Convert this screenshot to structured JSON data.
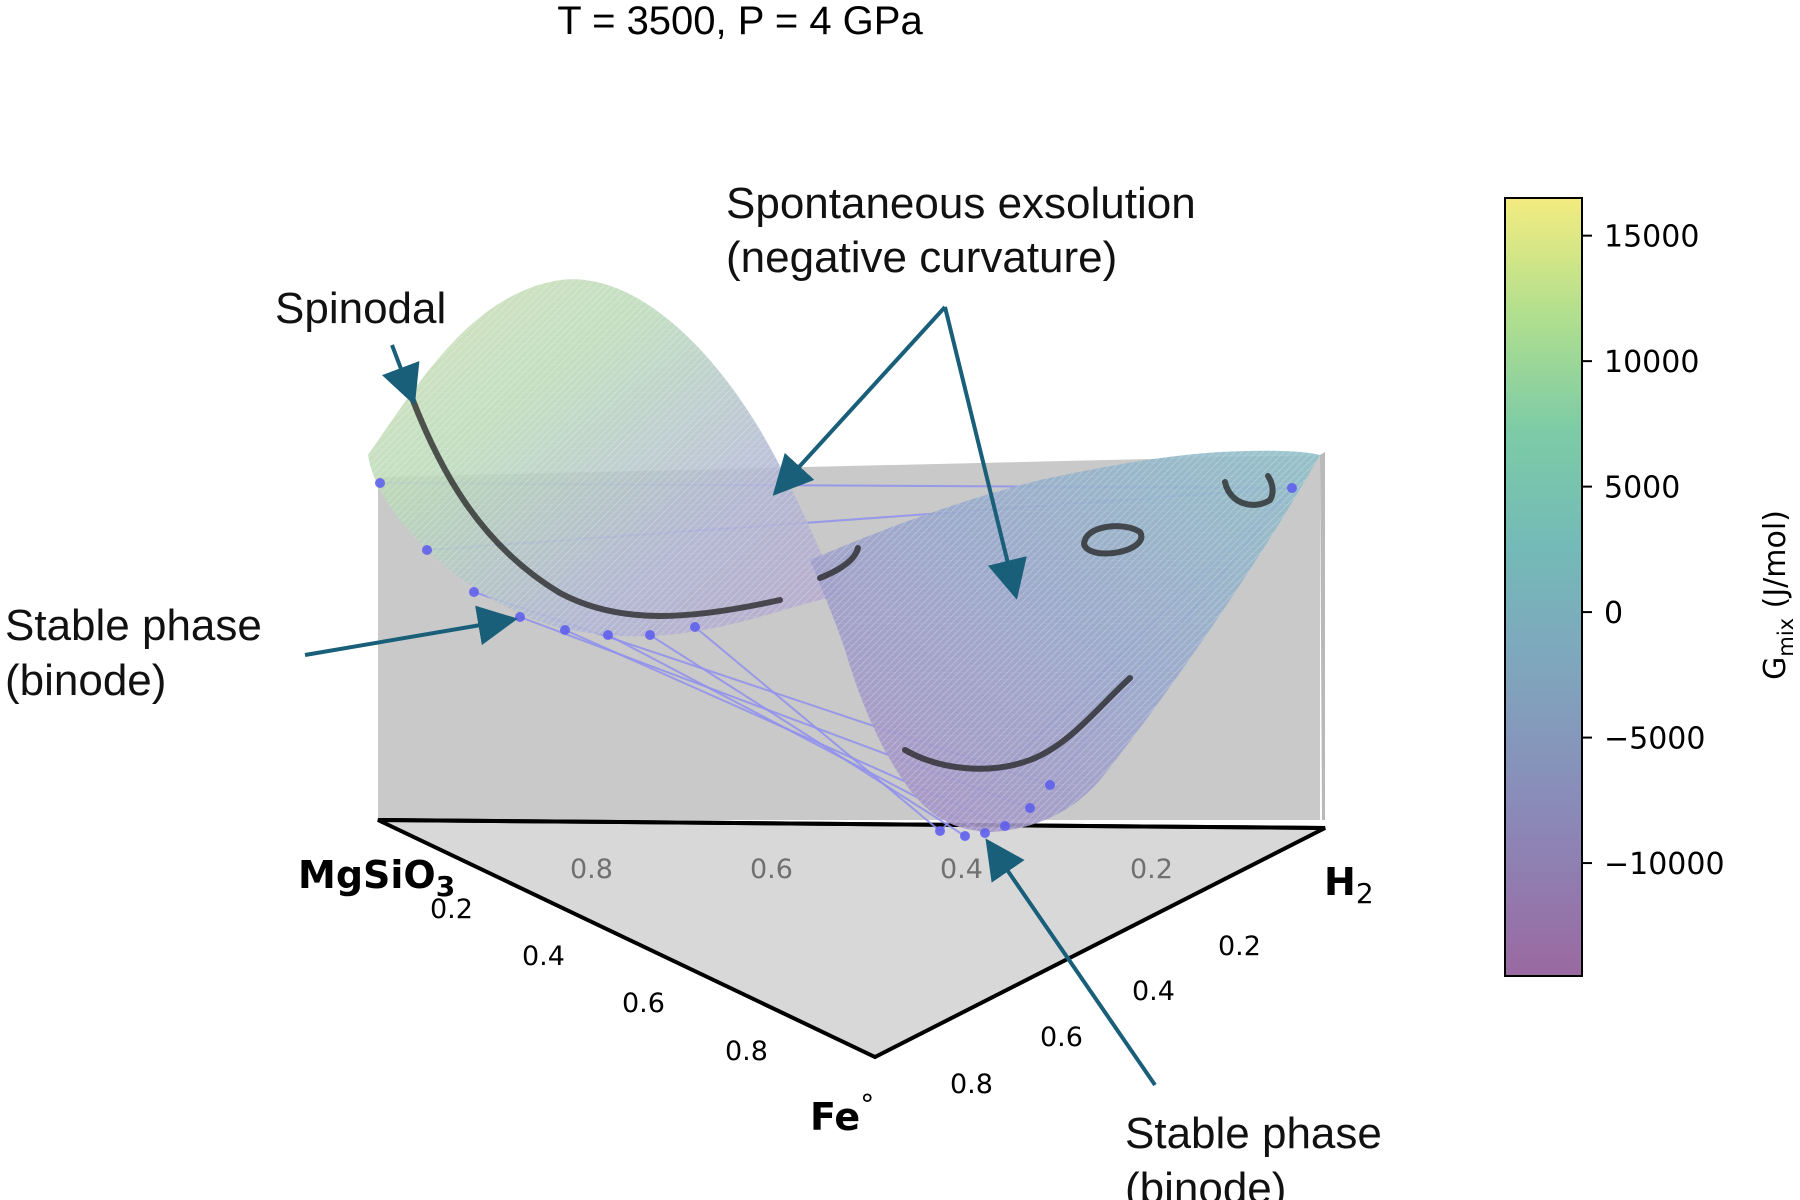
{
  "chart_data": {
    "type": "surface-3d-ternary",
    "title": "T = 3500, P = 4 GPa",
    "corners": {
      "left": "MgSiO",
      "left_sub": "3",
      "right": "H",
      "right_sub": "2",
      "bottom": "Fe",
      "bottom_sup": "°"
    },
    "back_axis_ticks": [
      "0.8",
      "0.6",
      "0.4",
      "0.2"
    ],
    "left_axis_ticks": [
      "0.2",
      "0.4",
      "0.6",
      "0.8"
    ],
    "right_axis_ticks": [
      "0.2",
      "0.4",
      "0.6",
      "0.8"
    ],
    "colorbar": {
      "label": "G",
      "label_sub": "mix",
      "label_unit": "(J/mol)",
      "ticks": [
        "15000",
        "10000",
        "5000",
        "0",
        "−5000",
        "−10000"
      ],
      "tick_values": [
        15000,
        10000,
        5000,
        0,
        -5000,
        -10000
      ],
      "range": [
        -14500,
        16500
      ],
      "colormap": "viridis",
      "alpha": 0.6
    },
    "annotations": {
      "spinodal": "Spinodal",
      "exsolution_line1": "Spontaneous exsolution",
      "exsolution_line2": "(negative curvature)",
      "stable_left_line1": "Stable phase",
      "stable_left_line2": "(binode)",
      "stable_bottom_line1": "Stable phase",
      "stable_bottom_line2": "(binode)"
    },
    "colors": {
      "arrow": "#1a5f7a",
      "tie_line": "#8f8fee",
      "binode_point": "#5a5aee",
      "spinodal_curve": "#222222",
      "floor": "#d6d6d6",
      "wall": "#c8c8c8"
    }
  }
}
